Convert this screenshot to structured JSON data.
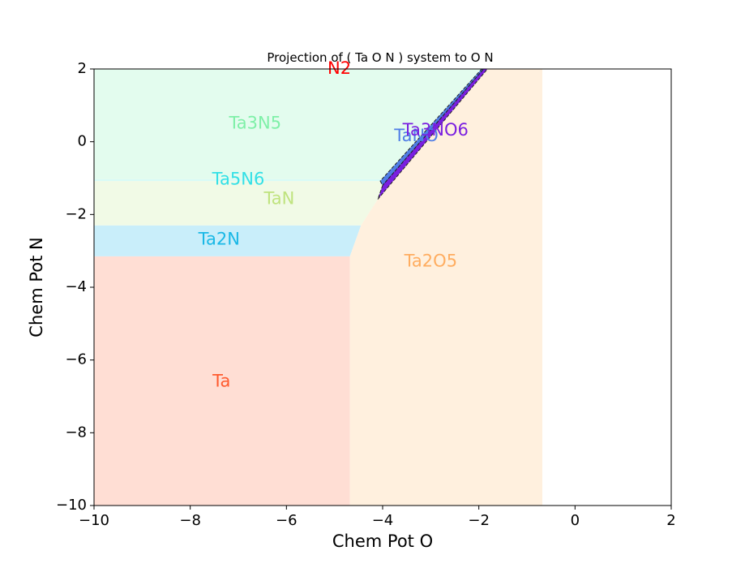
{
  "chart_data": {
    "type": "area",
    "title": "Projection of ( Ta O N ) system to O N",
    "xlabel": "Chem Pot O",
    "ylabel": "Chem Pot N",
    "xlim": [
      -10,
      2
    ],
    "ylim": [
      -10,
      2
    ],
    "xticks": [
      -10,
      -8,
      -6,
      -4,
      -2,
      0,
      2
    ],
    "yticks": [
      2,
      0,
      -2,
      -4,
      -6,
      -8,
      -10
    ],
    "xtick_labels": [
      "−10",
      "−8",
      "−6",
      "−4",
      "−2",
      "0",
      "2"
    ],
    "ytick_labels": [
      "2",
      "0",
      "−2",
      "−4",
      "−6",
      "−8",
      "−10"
    ],
    "grid": false,
    "regions": [
      {
        "name": "Ta",
        "color": "#ff5a2e",
        "fill": "#ffded4",
        "label_at": [
          -7.35,
          -6.6
        ],
        "polygon": [
          [
            -10,
            -10
          ],
          [
            -4.68,
            -10
          ],
          [
            -4.68,
            -3.15
          ],
          [
            -10,
            -3.15
          ]
        ]
      },
      {
        "name": "Ta2N",
        "color": "#1ab8e6",
        "fill": "#c9eefa",
        "label_at": [
          -7.4,
          -2.7
        ],
        "polygon": [
          [
            -10,
            -3.15
          ],
          [
            -4.68,
            -3.15
          ],
          [
            -4.45,
            -2.3
          ],
          [
            -10,
            -2.3
          ]
        ]
      },
      {
        "name": "TaN",
        "color": "#bfe37e",
        "fill": "#f1fae6",
        "label_at": [
          -6.15,
          -1.58
        ],
        "polygon": [
          [
            -10,
            -2.3
          ],
          [
            -4.45,
            -2.3
          ],
          [
            -4.1,
            -1.58
          ],
          [
            -3.95,
            -1.08
          ],
          [
            -10,
            -1.08
          ]
        ]
      },
      {
        "name": "Ta5N6",
        "color": "#33e0e6",
        "fill": "#d8fbf6",
        "label_at": [
          -7.0,
          -1.05
        ],
        "polygon": [
          [
            -10,
            -1.08
          ],
          [
            -3.95,
            -1.08
          ],
          [
            -3.95,
            -1.03
          ],
          [
            -10,
            -1.03
          ]
        ]
      },
      {
        "name": "Ta3N5",
        "color": "#7ff0a8",
        "fill": "#e3fcee",
        "label_at": [
          -6.65,
          0.5
        ],
        "polygon": [
          [
            -10,
            -1.03
          ],
          [
            -3.95,
            -1.03
          ],
          [
            -1.88,
            2
          ],
          [
            -10,
            2
          ]
        ]
      },
      {
        "name": "Ta2O5",
        "color": "#ffad60",
        "fill": "#fff0de",
        "label_at": [
          -3.0,
          -3.3
        ],
        "polygon": [
          [
            -4.68,
            -10
          ],
          [
            -0.68,
            -10
          ],
          [
            -0.68,
            2
          ],
          [
            -1.82,
            2
          ],
          [
            -4.1,
            -1.58
          ],
          [
            -4.45,
            -2.3
          ],
          [
            -4.68,
            -3.15
          ]
        ]
      },
      {
        "name": "TaNO",
        "color": "#4f7de6",
        "fill": "#4f7de6",
        "label_at": [
          -3.3,
          0.15
        ],
        "polygon": [
          [
            -4.05,
            -1.08
          ],
          [
            -4.0,
            -1.2
          ],
          [
            -1.9,
            2
          ],
          [
            -1.94,
            2
          ]
        ]
      },
      {
        "name": "Ta3NO6",
        "color": "#7a1fe0",
        "fill": "#7a1fe0",
        "label_at": [
          -2.9,
          0.3
        ],
        "polygon": [
          [
            -4.0,
            -1.2
          ],
          [
            -4.1,
            -1.58
          ],
          [
            -1.82,
            2
          ],
          [
            -1.9,
            2
          ]
        ]
      },
      {
        "name": "N2",
        "color": "#ff0000",
        "fill": "none",
        "label_at": [
          -4.9,
          2.0
        ],
        "polygon": []
      }
    ]
  }
}
